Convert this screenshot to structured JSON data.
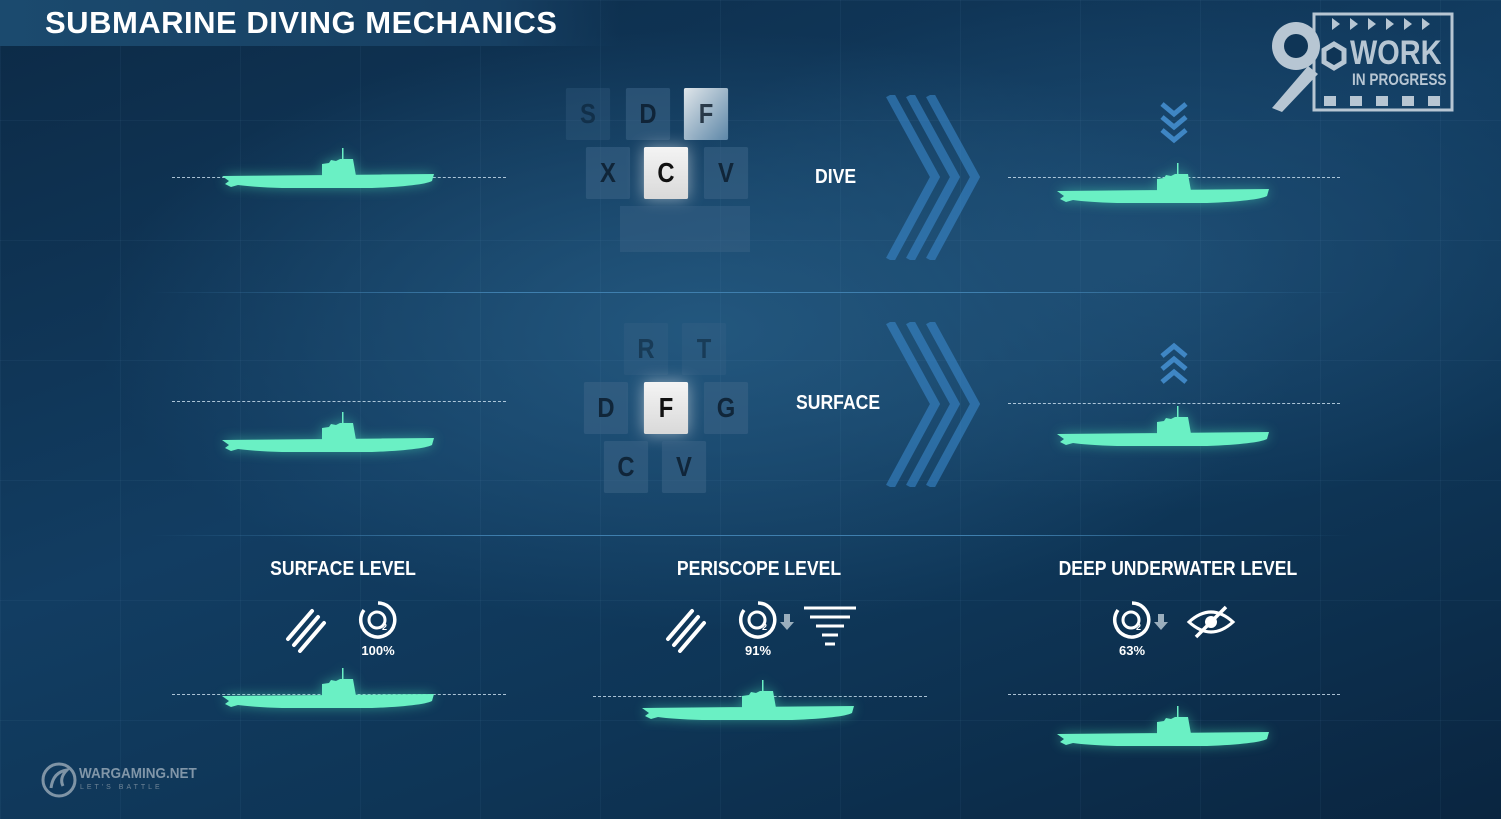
{
  "header": {
    "title": "SUBMARINE DIVING MECHANICS"
  },
  "badge": {
    "line1": "WORK",
    "line2": "IN PROGRESS"
  },
  "dive": {
    "keys": [
      "S",
      "D",
      "F",
      "X",
      "C",
      "V"
    ],
    "active_key": "C",
    "action": "DIVE"
  },
  "surface": {
    "keys": [
      "R",
      "T",
      "D",
      "F",
      "G",
      "C",
      "V"
    ],
    "active_key": "F",
    "action": "SURFACE"
  },
  "levels": [
    {
      "title": "SURFACE LEVEL",
      "oxygen": "100%"
    },
    {
      "title": "PERISCOPE LEVEL",
      "oxygen": "91%"
    },
    {
      "title": "DEEP UNDERWATER LEVEL",
      "oxygen": "63%"
    }
  ],
  "footer": {
    "brand": "WARGAMING.NET",
    "tagline": "LET'S BATTLE"
  },
  "colors": {
    "submarine": "#6af0c4",
    "background": "#0d2f4d"
  }
}
